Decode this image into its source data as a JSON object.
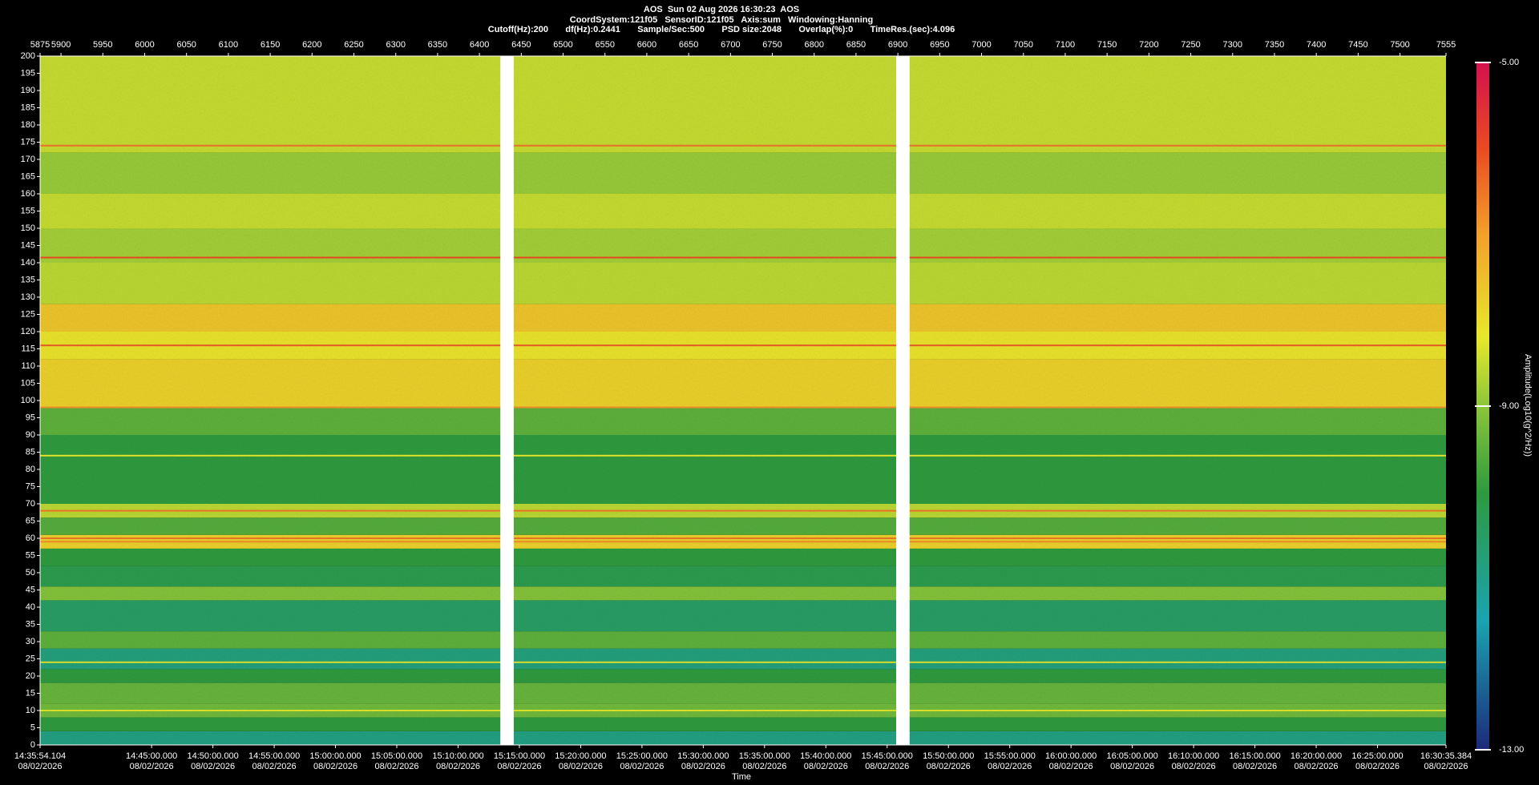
{
  "chart_data": {
    "type": "spectrogram",
    "header": [
      "AOS  Sun 02 Aug 2026 16:30:23  AOS",
      "CoordSystem:121f05   SensorID:121f05   Axis:sum   Windowing:Hanning",
      "Cutoff(Hz):200       df(Hz):0.2441       Sample/Sec:500       PSD size:2048       Overlap(%):0       TimeRes.(sec):4.096"
    ],
    "x_label": "Time",
    "colorbar_label": "Amplitude(Log10(g^2/Hz))",
    "xlim": [
      5875,
      7555
    ],
    "xticks": [
      5875,
      5900,
      5950,
      6000,
      6050,
      6100,
      6150,
      6200,
      6250,
      6300,
      6350,
      6400,
      6450,
      6500,
      6550,
      6600,
      6650,
      6700,
      6750,
      6800,
      6850,
      6900,
      6950,
      7000,
      7050,
      7100,
      7150,
      7200,
      7250,
      7300,
      7350,
      7400,
      7450,
      7500,
      7555
    ],
    "time_ticks": [
      {
        "time": "14:35:54.104",
        "date": "08/02/2026"
      },
      {
        "time": "14:45:00.000",
        "date": "08/02/2026"
      },
      {
        "time": "14:50:00.000",
        "date": "08/02/2026"
      },
      {
        "time": "14:55:00.000",
        "date": "08/02/2026"
      },
      {
        "time": "15:00:00.000",
        "date": "08/02/2026"
      },
      {
        "time": "15:05:00.000",
        "date": "08/02/2026"
      },
      {
        "time": "15:10:00.000",
        "date": "08/02/2026"
      },
      {
        "time": "15:15:00.000",
        "date": "08/02/2026"
      },
      {
        "time": "15:20:00.000",
        "date": "08/02/2026"
      },
      {
        "time": "15:25:00.000",
        "date": "08/02/2026"
      },
      {
        "time": "15:30:00.000",
        "date": "08/02/2026"
      },
      {
        "time": "15:35:00.000",
        "date": "08/02/2026"
      },
      {
        "time": "15:40:00.000",
        "date": "08/02/2026"
      },
      {
        "time": "15:45:00.000",
        "date": "08/02/2026"
      },
      {
        "time": "15:50:00.000",
        "date": "08/02/2026"
      },
      {
        "time": "15:55:00.000",
        "date": "08/02/2026"
      },
      {
        "time": "16:00:00.000",
        "date": "08/02/2026"
      },
      {
        "time": "16:05:00.000",
        "date": "08/02/2026"
      },
      {
        "time": "16:10:00.000",
        "date": "08/02/2026"
      },
      {
        "time": "16:15:00.000",
        "date": "08/02/2026"
      },
      {
        "time": "16:20:00.000",
        "date": "08/02/2026"
      },
      {
        "time": "16:25:00.000",
        "date": "08/02/2026"
      },
      {
        "time": "16:30:35.384",
        "date": "08/02/2026"
      }
    ],
    "ylim": [
      0,
      200
    ],
    "yticks": [
      0,
      5,
      10,
      15,
      20,
      25,
      30,
      35,
      40,
      45,
      50,
      55,
      60,
      65,
      70,
      75,
      80,
      85,
      90,
      95,
      100,
      105,
      110,
      115,
      120,
      125,
      130,
      135,
      140,
      145,
      150,
      155,
      160,
      165,
      170,
      175,
      180,
      185,
      190,
      195,
      200
    ],
    "clim": [
      -13,
      -5
    ],
    "cticks": [
      {
        "value": -5,
        "label": "-5.00"
      },
      {
        "value": -9,
        "label": "-9.00"
      },
      {
        "value": -13,
        "label": "-13.00"
      }
    ],
    "colormap": [
      {
        "value": -13,
        "color": "#1c2a7a"
      },
      {
        "value": -11.5,
        "color": "#1aa3b0"
      },
      {
        "value": -10,
        "color": "#2e9a3e"
      },
      {
        "value": -9,
        "color": "#8cc63a"
      },
      {
        "value": -8.2,
        "color": "#e8e82a"
      },
      {
        "value": -7,
        "color": "#f2a02a"
      },
      {
        "value": -6,
        "color": "#ea4a22"
      },
      {
        "value": -5,
        "color": "#d4104e"
      }
    ],
    "bands": [
      {
        "from": 0,
        "to": 4,
        "level": -10.9
      },
      {
        "from": 4,
        "to": 8,
        "level": -10
      },
      {
        "from": 8,
        "to": 12,
        "level": -9.3
      },
      {
        "from": 12,
        "to": 18,
        "level": -9.4
      },
      {
        "from": 18,
        "to": 22,
        "level": -10
      },
      {
        "from": 22,
        "to": 28,
        "level": -10.8
      },
      {
        "from": 28,
        "to": 33,
        "level": -9.5
      },
      {
        "from": 33,
        "to": 42,
        "level": -10.5
      },
      {
        "from": 42,
        "to": 46,
        "level": -9.1
      },
      {
        "from": 46,
        "to": 52,
        "level": -10.2
      },
      {
        "from": 52,
        "to": 57,
        "level": -10
      },
      {
        "from": 57,
        "to": 61,
        "level": -7.8
      },
      {
        "from": 61,
        "to": 66,
        "level": -9.6
      },
      {
        "from": 66,
        "to": 70,
        "level": -8.6
      },
      {
        "from": 70,
        "to": 90,
        "level": -10
      },
      {
        "from": 90,
        "to": 98,
        "level": -9.5
      },
      {
        "from": 98,
        "to": 112,
        "level": -7.8
      },
      {
        "from": 112,
        "to": 120,
        "level": -8.1
      },
      {
        "from": 120,
        "to": 128,
        "level": -7.6
      },
      {
        "from": 128,
        "to": 140,
        "level": -8.6
      },
      {
        "from": 140,
        "to": 150,
        "level": -8.8
      },
      {
        "from": 150,
        "to": 160,
        "level": -8.5
      },
      {
        "from": 160,
        "to": 172,
        "level": -8.9
      },
      {
        "from": 172,
        "to": 200,
        "level": -8.5
      }
    ],
    "lines": [
      {
        "freq": 174,
        "level": -6.5
      },
      {
        "freq": 141.5,
        "level": -6
      },
      {
        "freq": 116,
        "level": -6.2
      },
      {
        "freq": 98,
        "level": -6.8
      },
      {
        "freq": 84,
        "level": -8.2
      },
      {
        "freq": 68,
        "level": -6.5
      },
      {
        "freq": 60,
        "level": -6.5
      },
      {
        "freq": 59,
        "level": -6.8
      },
      {
        "freq": 24,
        "level": -8.3
      },
      {
        "freq": 10,
        "level": -8.3
      }
    ],
    "gaps": [
      [
        6425,
        6441
      ],
      [
        6898,
        6914
      ]
    ]
  }
}
